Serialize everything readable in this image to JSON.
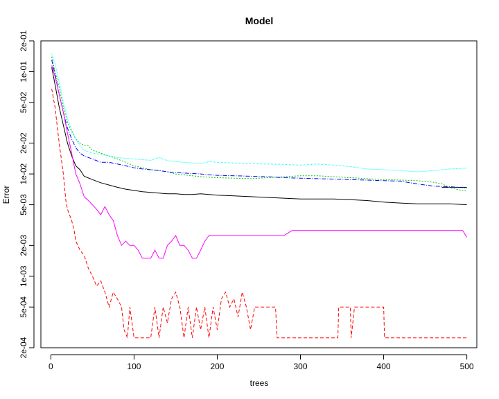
{
  "chart_data": {
    "type": "line",
    "title": "Model",
    "xlabel": "trees",
    "ylabel": "Error",
    "y_scale": "log",
    "xlim": [
      -12,
      512
    ],
    "ylim": [
      0.0002,
      0.2
    ],
    "x_ticks": [
      0,
      100,
      200,
      300,
      400,
      500
    ],
    "x_tick_labels": [
      "0",
      "100",
      "200",
      "300",
      "400",
      "500"
    ],
    "y_ticks": [
      0.0002,
      0.0005,
      0.001,
      0.002,
      0.005,
      0.01,
      0.02,
      0.05,
      0.1,
      0.2
    ],
    "y_tick_labels": [
      "2e-04",
      "5e-04",
      "1e-03",
      "2e-03",
      "5e-03",
      "1e-02",
      "2e-02",
      "5e-02",
      "1e-01",
      "2e-01"
    ],
    "grid": false,
    "legend": "none",
    "series": [
      {
        "color": "#000000",
        "dash": "",
        "points": [
          [
            1,
            0.11
          ],
          [
            5,
            0.075
          ],
          [
            10,
            0.045
          ],
          [
            15,
            0.03
          ],
          [
            20,
            0.02
          ],
          [
            25,
            0.015
          ],
          [
            30,
            0.012
          ],
          [
            35,
            0.011
          ],
          [
            40,
            0.0095
          ],
          [
            50,
            0.0088
          ],
          [
            60,
            0.0082
          ],
          [
            70,
            0.0078
          ],
          [
            80,
            0.0074
          ],
          [
            90,
            0.0071
          ],
          [
            100,
            0.0069
          ],
          [
            110,
            0.0067
          ],
          [
            120,
            0.0066
          ],
          [
            130,
            0.0065
          ],
          [
            140,
            0.0064
          ],
          [
            150,
            0.0064
          ],
          [
            160,
            0.0063
          ],
          [
            170,
            0.0063
          ],
          [
            180,
            0.0064
          ],
          [
            190,
            0.0063
          ],
          [
            200,
            0.0062
          ],
          [
            220,
            0.0061
          ],
          [
            240,
            0.006
          ],
          [
            260,
            0.0059
          ],
          [
            280,
            0.0058
          ],
          [
            300,
            0.0057
          ],
          [
            320,
            0.0057
          ],
          [
            340,
            0.0057
          ],
          [
            360,
            0.0056
          ],
          [
            380,
            0.0055
          ],
          [
            400,
            0.0053
          ],
          [
            420,
            0.0052
          ],
          [
            440,
            0.0051
          ],
          [
            460,
            0.0051
          ],
          [
            480,
            0.0051
          ],
          [
            500,
            0.005
          ]
        ]
      },
      {
        "color": "#000000",
        "dash": "",
        "points": [
          [
            470,
            0.0074
          ],
          [
            500,
            0.0074
          ]
        ]
      },
      {
        "color": "#ff0000",
        "dash": "5,3",
        "points": [
          [
            1,
            0.068
          ],
          [
            5,
            0.045
          ],
          [
            10,
            0.02
          ],
          [
            15,
            0.01
          ],
          [
            18,
            0.0055
          ],
          [
            20,
            0.0045
          ],
          [
            25,
            0.0035
          ],
          [
            28,
            0.0028
          ],
          [
            30,
            0.0022
          ],
          [
            35,
            0.0018
          ],
          [
            40,
            0.0016
          ],
          [
            45,
            0.0012
          ],
          [
            50,
            0.001
          ],
          [
            55,
            0.0008
          ],
          [
            60,
            0.0009
          ],
          [
            65,
            0.0007
          ],
          [
            70,
            0.0005
          ],
          [
            75,
            0.0007
          ],
          [
            80,
            0.0006
          ],
          [
            85,
            0.0005
          ],
          [
            88,
            0.0003
          ],
          [
            92,
            0.00025
          ],
          [
            95,
            0.0005
          ],
          [
            100,
            0.00025
          ],
          [
            110,
            0.00025
          ],
          [
            120,
            0.00025
          ],
          [
            125,
            0.0005
          ],
          [
            130,
            0.00025
          ],
          [
            135,
            0.0005
          ],
          [
            140,
            0.00035
          ],
          [
            145,
            0.0006
          ],
          [
            150,
            0.0007
          ],
          [
            155,
            0.0005
          ],
          [
            160,
            0.00025
          ],
          [
            165,
            0.0005
          ],
          [
            170,
            0.00025
          ],
          [
            175,
            0.0005
          ],
          [
            180,
            0.0003
          ],
          [
            185,
            0.0005
          ],
          [
            190,
            0.00025
          ],
          [
            195,
            0.0005
          ],
          [
            200,
            0.0003
          ],
          [
            205,
            0.0006
          ],
          [
            210,
            0.0007
          ],
          [
            215,
            0.0005
          ],
          [
            220,
            0.0006
          ],
          [
            225,
            0.0004
          ],
          [
            230,
            0.0007
          ],
          [
            235,
            0.0005
          ],
          [
            240,
            0.0003
          ],
          [
            245,
            0.0005
          ],
          [
            250,
            0.0005
          ],
          [
            260,
            0.0005
          ],
          [
            270,
            0.0005
          ],
          [
            272,
            0.00025
          ],
          [
            300,
            0.00025
          ],
          [
            330,
            0.00025
          ],
          [
            345,
            0.00025
          ],
          [
            346,
            0.0005
          ],
          [
            360,
            0.0005
          ],
          [
            361,
            0.00025
          ],
          [
            365,
            0.0005
          ],
          [
            400,
            0.0005
          ],
          [
            401,
            0.00025
          ],
          [
            450,
            0.00025
          ],
          [
            500,
            0.00025
          ]
        ]
      },
      {
        "color": "#00c800",
        "dash": "2,2",
        "points": [
          [
            1,
            0.14
          ],
          [
            5,
            0.1
          ],
          [
            10,
            0.07
          ],
          [
            15,
            0.045
          ],
          [
            20,
            0.032
          ],
          [
            25,
            0.026
          ],
          [
            30,
            0.022
          ],
          [
            35,
            0.02
          ],
          [
            40,
            0.019
          ],
          [
            45,
            0.019
          ],
          [
            50,
            0.017
          ],
          [
            60,
            0.016
          ],
          [
            70,
            0.015
          ],
          [
            80,
            0.014
          ],
          [
            90,
            0.013
          ],
          [
            100,
            0.012
          ],
          [
            110,
            0.0115
          ],
          [
            120,
            0.011
          ],
          [
            130,
            0.0108
          ],
          [
            140,
            0.0105
          ],
          [
            150,
            0.01
          ],
          [
            160,
            0.0098
          ],
          [
            170,
            0.0096
          ],
          [
            180,
            0.0094
          ],
          [
            190,
            0.0093
          ],
          [
            200,
            0.0092
          ],
          [
            220,
            0.0091
          ],
          [
            240,
            0.009
          ],
          [
            260,
            0.0092
          ],
          [
            280,
            0.0094
          ],
          [
            300,
            0.0096
          ],
          [
            320,
            0.0096
          ],
          [
            340,
            0.0094
          ],
          [
            360,
            0.0092
          ],
          [
            380,
            0.009
          ],
          [
            400,
            0.0088
          ],
          [
            420,
            0.0087
          ],
          [
            440,
            0.0086
          ],
          [
            460,
            0.0083
          ],
          [
            470,
            0.008
          ],
          [
            480,
            0.0073
          ],
          [
            490,
            0.007
          ],
          [
            500,
            0.0068
          ]
        ]
      },
      {
        "color": "#0000ff",
        "dash": "6,2,1,2",
        "points": [
          [
            1,
            0.13
          ],
          [
            5,
            0.095
          ],
          [
            10,
            0.06
          ],
          [
            15,
            0.04
          ],
          [
            20,
            0.028
          ],
          [
            25,
            0.022
          ],
          [
            30,
            0.018
          ],
          [
            35,
            0.016
          ],
          [
            40,
            0.015
          ],
          [
            50,
            0.014
          ],
          [
            60,
            0.013
          ],
          [
            70,
            0.013
          ],
          [
            80,
            0.0125
          ],
          [
            90,
            0.012
          ],
          [
            100,
            0.0115
          ],
          [
            110,
            0.0112
          ],
          [
            120,
            0.011
          ],
          [
            130,
            0.0108
          ],
          [
            140,
            0.0105
          ],
          [
            150,
            0.0103
          ],
          [
            160,
            0.0102
          ],
          [
            170,
            0.0101
          ],
          [
            180,
            0.01
          ],
          [
            190,
            0.0098
          ],
          [
            200,
            0.0097
          ],
          [
            220,
            0.0096
          ],
          [
            240,
            0.0095
          ],
          [
            260,
            0.0094
          ],
          [
            280,
            0.0092
          ],
          [
            300,
            0.0091
          ],
          [
            320,
            0.009
          ],
          [
            340,
            0.0089
          ],
          [
            360,
            0.0088
          ],
          [
            380,
            0.0087
          ],
          [
            400,
            0.0086
          ],
          [
            420,
            0.0085
          ],
          [
            440,
            0.008
          ],
          [
            460,
            0.0076
          ],
          [
            480,
            0.0075
          ],
          [
            500,
            0.0073
          ]
        ]
      },
      {
        "color": "#00ffff",
        "dash": "1,1",
        "points": [
          [
            1,
            0.15
          ],
          [
            5,
            0.12
          ],
          [
            10,
            0.08
          ],
          [
            15,
            0.05
          ],
          [
            20,
            0.035
          ],
          [
            25,
            0.027
          ],
          [
            30,
            0.022
          ],
          [
            35,
            0.019
          ],
          [
            40,
            0.017
          ],
          [
            50,
            0.016
          ],
          [
            60,
            0.0155
          ],
          [
            70,
            0.015
          ],
          [
            80,
            0.0145
          ],
          [
            90,
            0.0142
          ],
          [
            100,
            0.014
          ],
          [
            110,
            0.0138
          ],
          [
            120,
            0.0136
          ],
          [
            130,
            0.0145
          ],
          [
            140,
            0.0135
          ],
          [
            150,
            0.0132
          ],
          [
            160,
            0.013
          ],
          [
            170,
            0.0128
          ],
          [
            180,
            0.0126
          ],
          [
            190,
            0.0132
          ],
          [
            200,
            0.013
          ],
          [
            220,
            0.0128
          ],
          [
            240,
            0.0126
          ],
          [
            260,
            0.0125
          ],
          [
            280,
            0.0124
          ],
          [
            300,
            0.0122
          ],
          [
            320,
            0.0125
          ],
          [
            340,
            0.0122
          ],
          [
            360,
            0.0118
          ],
          [
            380,
            0.0112
          ],
          [
            400,
            0.011
          ],
          [
            420,
            0.0108
          ],
          [
            440,
            0.0105
          ],
          [
            460,
            0.0108
          ],
          [
            480,
            0.0112
          ],
          [
            500,
            0.0114
          ]
        ]
      },
      {
        "color": "#ff00ff",
        "dash": "",
        "points": [
          [
            1,
            0.115
          ],
          [
            5,
            0.09
          ],
          [
            10,
            0.06
          ],
          [
            15,
            0.04
          ],
          [
            20,
            0.025
          ],
          [
            25,
            0.016
          ],
          [
            28,
            0.012
          ],
          [
            30,
            0.01
          ],
          [
            35,
            0.008
          ],
          [
            40,
            0.006
          ],
          [
            45,
            0.0055
          ],
          [
            50,
            0.005
          ],
          [
            55,
            0.0045
          ],
          [
            60,
            0.004
          ],
          [
            65,
            0.0048
          ],
          [
            70,
            0.004
          ],
          [
            75,
            0.0035
          ],
          [
            80,
            0.0025
          ],
          [
            85,
            0.002
          ],
          [
            90,
            0.0022
          ],
          [
            95,
            0.002
          ],
          [
            100,
            0.002
          ],
          [
            105,
            0.0018
          ],
          [
            110,
            0.0015
          ],
          [
            115,
            0.0015
          ],
          [
            120,
            0.0015
          ],
          [
            125,
            0.0018
          ],
          [
            130,
            0.0015
          ],
          [
            135,
            0.0015
          ],
          [
            140,
            0.002
          ],
          [
            145,
            0.0022
          ],
          [
            150,
            0.0025
          ],
          [
            155,
            0.002
          ],
          [
            160,
            0.002
          ],
          [
            165,
            0.0018
          ],
          [
            170,
            0.0015
          ],
          [
            175,
            0.0015
          ],
          [
            180,
            0.0018
          ],
          [
            185,
            0.0022
          ],
          [
            190,
            0.0025
          ],
          [
            200,
            0.0025
          ],
          [
            210,
            0.0025
          ],
          [
            220,
            0.0025
          ],
          [
            230,
            0.0025
          ],
          [
            240,
            0.0025
          ],
          [
            250,
            0.0025
          ],
          [
            260,
            0.0025
          ],
          [
            270,
            0.0025
          ],
          [
            280,
            0.0025
          ],
          [
            290,
            0.0028
          ],
          [
            300,
            0.0028
          ],
          [
            320,
            0.0028
          ],
          [
            340,
            0.0028
          ],
          [
            360,
            0.0028
          ],
          [
            380,
            0.0028
          ],
          [
            400,
            0.0028
          ],
          [
            420,
            0.0028
          ],
          [
            440,
            0.0028
          ],
          [
            460,
            0.0028
          ],
          [
            480,
            0.0028
          ],
          [
            495,
            0.0028
          ],
          [
            500,
            0.0024
          ]
        ]
      }
    ]
  }
}
